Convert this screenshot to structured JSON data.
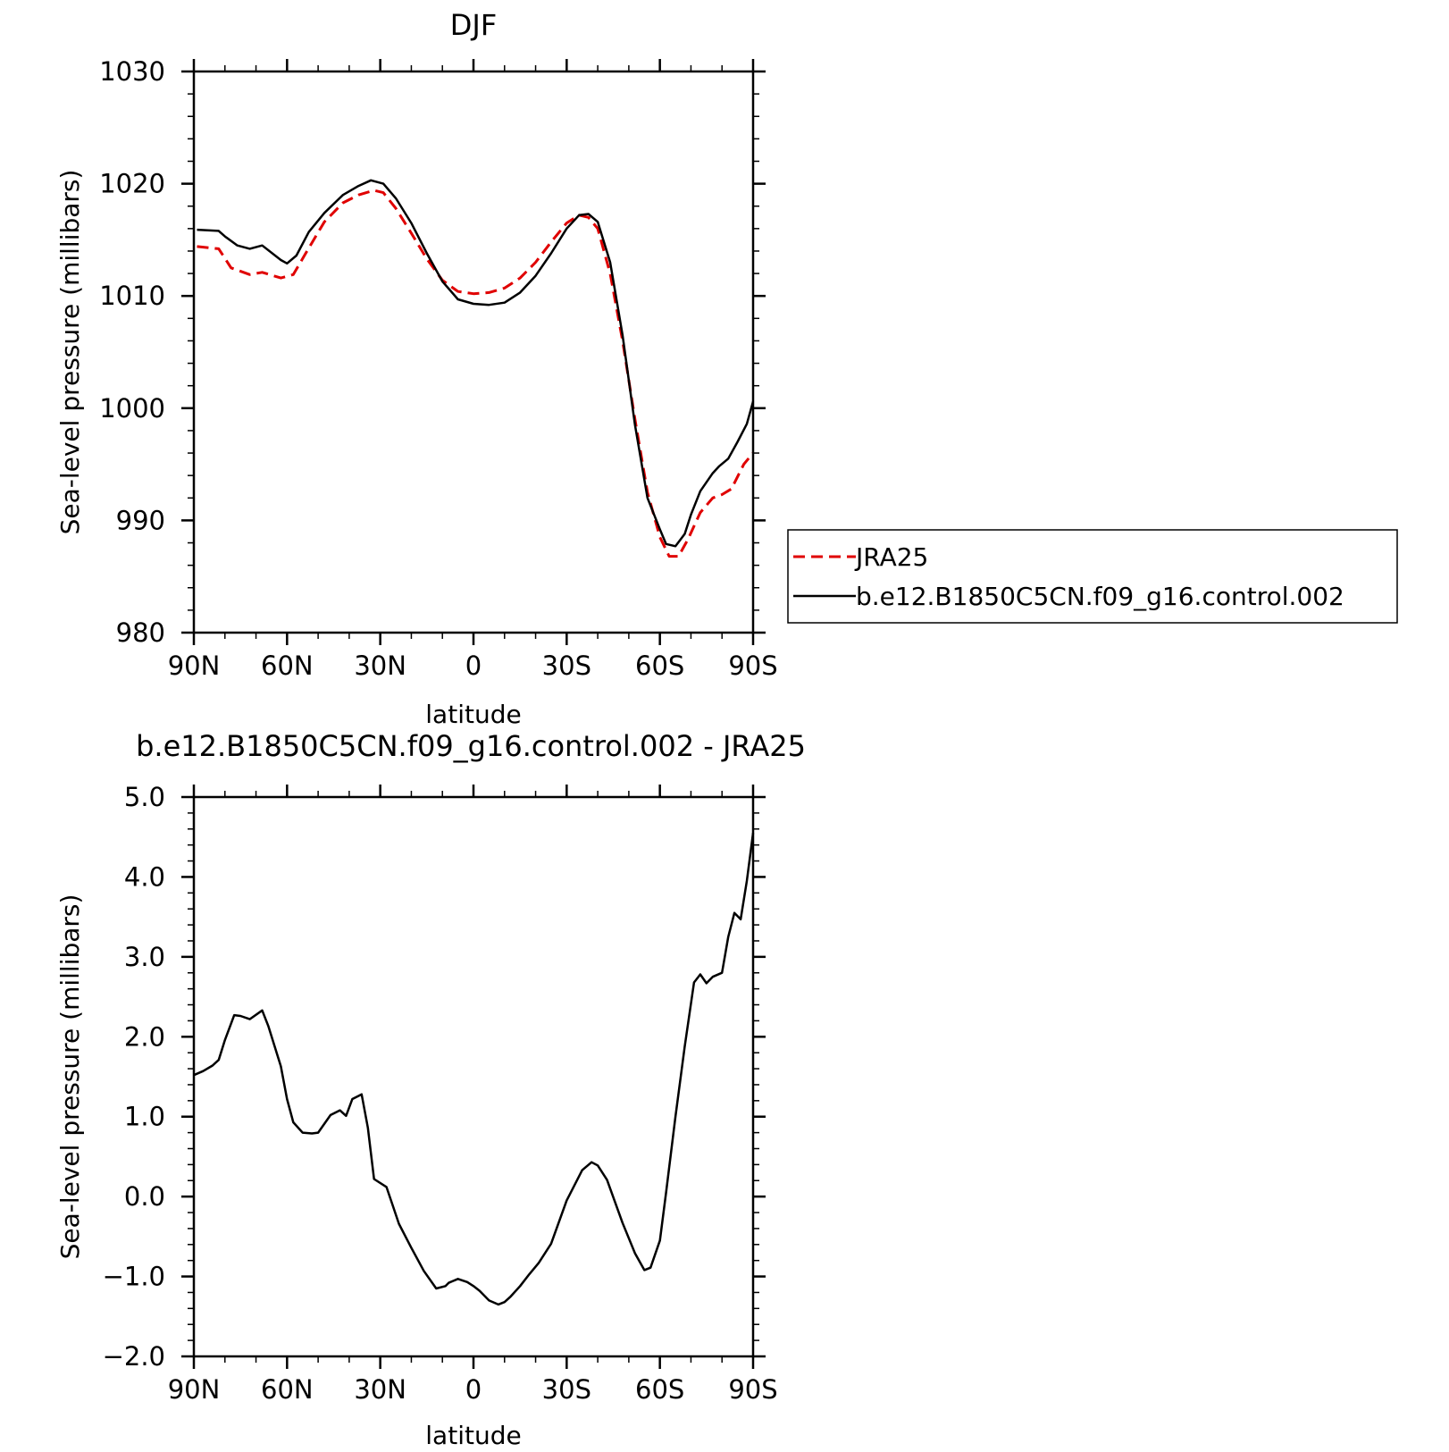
{
  "colors": {
    "model": "#000000",
    "reference": "#e00000"
  },
  "chart_data": [
    {
      "type": "line",
      "title": "DJF",
      "xlabel": "latitude",
      "ylabel": "Sea-level pressure (millibars)",
      "x_ticks": [
        "90N",
        "60N",
        "30N",
        "0",
        "30S",
        "60S",
        "90S"
      ],
      "y_ticks": [
        "980",
        "990",
        "1000",
        "1010",
        "1020",
        "1030"
      ],
      "xlim": [
        90,
        -90
      ],
      "ylim": [
        980,
        1030
      ],
      "legend": {
        "position": "right",
        "items": [
          "JRA25",
          "b.e12.B1850C5CN.f09_g16.control.002"
        ]
      },
      "series": [
        {
          "name": "JRA25",
          "style": "dashed",
          "color": "#e00000",
          "x": [
            89,
            82,
            78,
            72,
            68,
            62,
            58,
            54,
            48,
            42,
            37,
            32,
            29,
            25,
            20,
            15,
            10,
            5,
            0,
            -5,
            -10,
            -15,
            -20,
            -25,
            -30,
            -34,
            -37,
            -40,
            -44,
            -48,
            -52,
            -56,
            -60,
            -63,
            -66,
            -69,
            -73,
            -77,
            -80,
            -83,
            -87,
            -90
          ],
          "y": [
            1014.4,
            1014.2,
            1012.5,
            1011.9,
            1012.1,
            1011.6,
            1011.9,
            1013.8,
            1016.6,
            1018.3,
            1019.0,
            1019.4,
            1019.2,
            1017.8,
            1015.6,
            1013.3,
            1011.4,
            1010.4,
            1010.2,
            1010.3,
            1010.7,
            1011.6,
            1013.0,
            1014.8,
            1016.5,
            1017.2,
            1017.0,
            1016.0,
            1012.0,
            1006.0,
            999.0,
            992.5,
            988.5,
            986.8,
            986.8,
            988.3,
            990.7,
            992.0,
            992.3,
            992.8,
            995.0,
            996.0
          ]
        },
        {
          "name": "b.e12.B1850C5CN.f09_g16.control.002",
          "style": "solid",
          "color": "#000000",
          "x": [
            89,
            82,
            80,
            76,
            72,
            68,
            62,
            60,
            57,
            53,
            48,
            42,
            37,
            33,
            29,
            25,
            20,
            15,
            10,
            5,
            0,
            -5,
            -10,
            -15,
            -20,
            -25,
            -30,
            -34,
            -37,
            -40,
            -44,
            -48,
            -52,
            -56,
            -60,
            -62,
            -65,
            -68,
            -70,
            -73,
            -77,
            -79,
            -82,
            -85,
            -88,
            -90
          ],
          "y": [
            1015.9,
            1015.8,
            1015.3,
            1014.5,
            1014.2,
            1014.5,
            1013.2,
            1012.9,
            1013.6,
            1015.7,
            1017.4,
            1019.0,
            1019.8,
            1020.3,
            1020.0,
            1018.7,
            1016.5,
            1013.8,
            1011.3,
            1009.7,
            1009.3,
            1009.2,
            1009.4,
            1010.3,
            1011.8,
            1013.8,
            1016.0,
            1017.2,
            1017.3,
            1016.6,
            1013.0,
            1006.5,
            998.5,
            992.0,
            989.2,
            987.9,
            987.7,
            988.8,
            990.5,
            992.6,
            994.2,
            994.8,
            995.5,
            997.0,
            998.6,
            1000.6
          ]
        }
      ]
    },
    {
      "type": "line",
      "title": "b.e12.B1850C5CN.f09_g16.control.002 - JRA25",
      "xlabel": "latitude",
      "ylabel": "Sea-level pressure (millibars)",
      "x_ticks": [
        "90N",
        "60N",
        "30N",
        "0",
        "30S",
        "60S",
        "90S"
      ],
      "y_ticks": [
        "-2.0",
        "-1.0",
        "0.0",
        "1.0",
        "2.0",
        "3.0",
        "4.0",
        "5.0"
      ],
      "xlim": [
        90,
        -90
      ],
      "ylim": [
        -2,
        5
      ],
      "series": [
        {
          "style": "solid",
          "color": "#000000",
          "x": [
            90,
            87,
            84,
            82,
            80,
            77,
            75,
            72,
            68,
            66,
            62,
            60,
            58,
            55,
            52,
            50,
            46,
            43,
            41,
            39,
            36,
            34,
            32,
            28,
            26,
            24,
            20,
            16,
            12,
            9,
            8,
            5,
            2,
            0,
            -2,
            -5,
            -8,
            -10,
            -12,
            -15,
            -18,
            -21,
            -25,
            -30,
            -35,
            -38,
            -40,
            -43,
            -48,
            -52,
            -55,
            -57,
            -60,
            -62,
            -65,
            -68,
            -71,
            -73,
            -75,
            -77,
            -80,
            -82,
            -84,
            -86,
            -88,
            -90
          ],
          "y": [
            1.52,
            1.57,
            1.64,
            1.71,
            1.96,
            2.27,
            2.26,
            2.22,
            2.33,
            2.13,
            1.63,
            1.22,
            0.93,
            0.8,
            0.79,
            0.8,
            1.02,
            1.08,
            1.01,
            1.22,
            1.28,
            0.86,
            0.22,
            0.12,
            -0.11,
            -0.34,
            -0.64,
            -0.93,
            -1.15,
            -1.12,
            -1.08,
            -1.03,
            -1.07,
            -1.12,
            -1.18,
            -1.3,
            -1.35,
            -1.32,
            -1.25,
            -1.12,
            -0.97,
            -0.83,
            -0.59,
            -0.05,
            0.33,
            0.43,
            0.39,
            0.21,
            -0.33,
            -0.71,
            -0.92,
            -0.89,
            -0.55,
            0.05,
            1.0,
            1.88,
            2.68,
            2.78,
            2.67,
            2.75,
            2.8,
            3.25,
            3.55,
            3.47,
            3.95,
            4.55
          ]
        }
      ]
    }
  ]
}
